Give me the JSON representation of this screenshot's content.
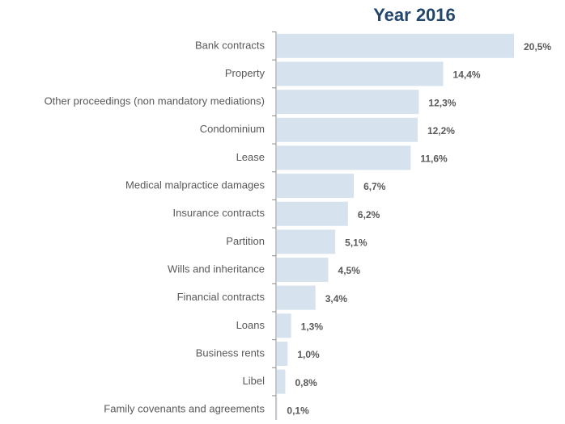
{
  "chart_data": {
    "type": "bar",
    "orientation": "horizontal",
    "title": "Year 2016",
    "categories": [
      "Bank contracts",
      "Property",
      "Other proceedings (non mandatory mediations)",
      "Condominium",
      "Lease",
      "Medical malpractice damages",
      "Insurance contracts",
      "Partition",
      "Wills  and inheritance",
      "Financial contracts",
      "Loans",
      "Business rents",
      "Libel",
      "Family covenants and agreements"
    ],
    "values": [
      20.5,
      14.4,
      12.3,
      12.2,
      11.6,
      6.7,
      6.2,
      5.1,
      4.5,
      3.4,
      1.3,
      1.0,
      0.8,
      0.1
    ],
    "value_labels": [
      "20,5%",
      "14,4%",
      "12,3%",
      "12,2%",
      "11,6%",
      "6,7%",
      "6,2%",
      "5,1%",
      "4,5%",
      "3,4%",
      "1,3%",
      "1,0%",
      "0,8%",
      "0,1%"
    ],
    "color": "#d6e3ef"
  }
}
